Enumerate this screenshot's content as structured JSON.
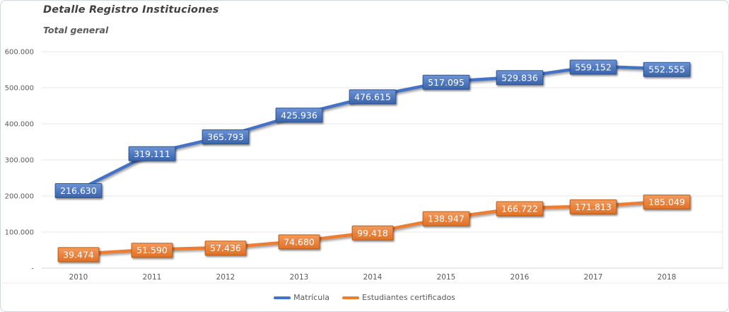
{
  "header": {
    "title": "Detalle Registro Instituciones",
    "subtitle": "Total general"
  },
  "chart_data": {
    "type": "line",
    "title": "Detalle Registro Instituciones",
    "subtitle": "Total general",
    "categories": [
      "2010",
      "2011",
      "2012",
      "2013",
      "2014",
      "2015",
      "2016",
      "2017",
      "2018"
    ],
    "series": [
      {
        "name": "Matrícula",
        "color": "#4472C4",
        "label_fill_top": "#6b93d5",
        "label_fill_bottom": "#3a63ab",
        "label_border": "#2d5290",
        "values": [
          216630,
          319111,
          365793,
          425936,
          476615,
          517095,
          529836,
          559152,
          552555
        ]
      },
      {
        "name": "Estudiantes certificados",
        "color": "#ED7D31",
        "label_fill_top": "#f29b5e",
        "label_fill_bottom": "#e07026",
        "label_border": "#bb5c16",
        "values": [
          39474,
          51590,
          57436,
          74680,
          99418,
          138947,
          166722,
          171813,
          185049
        ]
      }
    ],
    "y_axis": {
      "min": 0,
      "max": 600000,
      "step": 100000,
      "tick_labels": [
        "600.000",
        "500.000",
        "400.000",
        "300.000",
        "200.000",
        "100.000",
        "-"
      ]
    },
    "grid": true,
    "legend_position": "bottom",
    "number_format": "thousands-dot",
    "data_labels": true
  }
}
